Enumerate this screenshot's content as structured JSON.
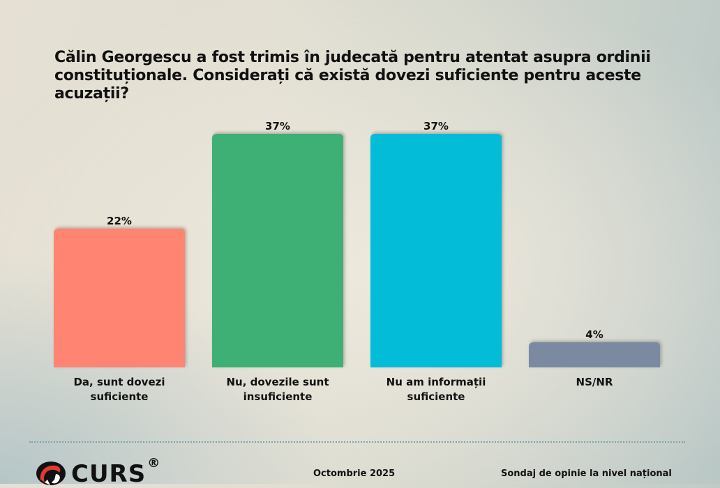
{
  "title": "Călin Georgescu a fost trimis în judecată pentru atentat asupra ordinii constituționale. Considerați că există dovezi suficiente pentru aceste acuzații?",
  "bars": [
    {
      "label_line1": "Da, sunt dovezi",
      "label_line2": "suficiente",
      "value_label": "22%",
      "value": 22,
      "color": "#ff8472"
    },
    {
      "label_line1": "Nu, dovezile sunt",
      "label_line2": "insuficiente",
      "value_label": "37%",
      "value": 37,
      "color": "#3eb075"
    },
    {
      "label_line1": "Nu am informații",
      "label_line2": "suficiente",
      "value_label": "37%",
      "value": 37,
      "color": "#03bcd8"
    },
    {
      "label_line1": "NS/NR",
      "label_line2": "",
      "value_label": "4%",
      "value": 4,
      "color": "#7b8aa1"
    }
  ],
  "footer": {
    "logo_text": "CURS",
    "logo_reg": "®",
    "date": "Octombrie 2025",
    "source": "Sondaj de opinie la nivel național"
  },
  "chart_data": {
    "type": "bar",
    "title": "Călin Georgescu a fost trimis în judecată pentru atentat asupra ordinii constituționale. Considerați că există dovezi suficiente pentru aceste acuzații?",
    "categories": [
      "Da, sunt dovezi suficiente",
      "Nu, dovezile sunt insuficiente",
      "Nu am informații suficiente",
      "NS/NR"
    ],
    "values": [
      22,
      37,
      37,
      4
    ],
    "unit": "%",
    "colors": [
      "#ff8472",
      "#3eb075",
      "#03bcd8",
      "#7b8aa1"
    ],
    "xlabel": "",
    "ylabel": "",
    "ylim": [
      0,
      40
    ],
    "grid": false,
    "legend": "none",
    "data_labels": [
      "22%",
      "37%",
      "37%",
      "4%"
    ]
  }
}
